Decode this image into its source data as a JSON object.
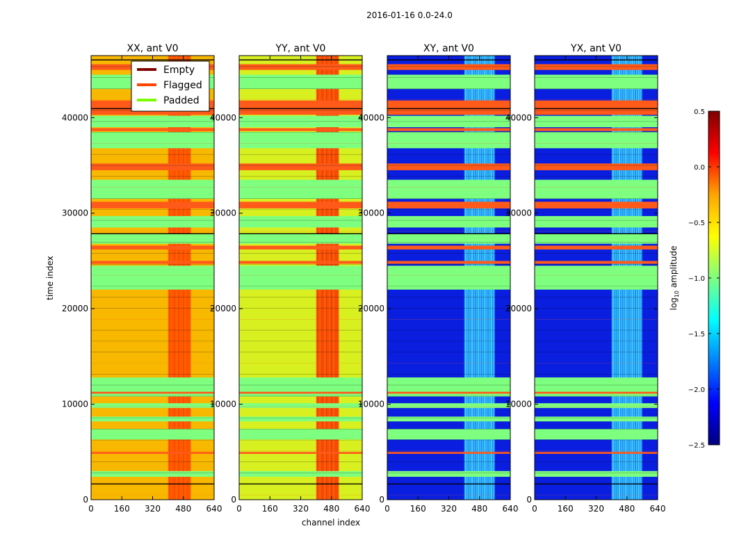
{
  "chart_data": {
    "type": "heatmap",
    "title": "2016-01-16 0.0-24.0",
    "xlabel": "channel index",
    "ylabel": "time index",
    "xlim": [
      0,
      640
    ],
    "ylim": [
      0,
      46500
    ],
    "xticks": [
      0,
      160,
      320,
      480,
      640
    ],
    "yticks": [
      0,
      10000,
      20000,
      30000,
      40000
    ],
    "panels": [
      {
        "title": "XX, ant V0",
        "base_color": "#f8b800",
        "hot_color": "#ff3a00",
        "hot_channels": [
          400,
          520
        ]
      },
      {
        "title": "YY, ant V0",
        "base_color": "#d8f020",
        "hot_color": "#ff2000",
        "hot_channels": [
          400,
          520
        ]
      },
      {
        "title": "XY, ant V0",
        "base_color": "#0a1ee0",
        "hot_color": "#40e8ff",
        "hot_channels": [
          400,
          560
        ]
      },
      {
        "title": "YX, ant V0",
        "base_color": "#0a1ee0",
        "hot_color": "#40e8ff",
        "hot_channels": [
          400,
          560
        ]
      }
    ],
    "padded_bands": [
      [
        2400,
        3000
      ],
      [
        6300,
        7400
      ],
      [
        8200,
        8700
      ],
      [
        9600,
        10100
      ],
      [
        10800,
        12800
      ],
      [
        22000,
        24500
      ],
      [
        26800,
        27800
      ],
      [
        28500,
        29700
      ],
      [
        31500,
        33500
      ],
      [
        36800,
        38500
      ],
      [
        39000,
        40200
      ],
      [
        43000,
        44500
      ]
    ],
    "flagged_bands": [
      [
        4800,
        5000
      ],
      [
        11100,
        11300
      ],
      [
        24700,
        25000
      ],
      [
        26200,
        26600
      ],
      [
        30500,
        31200
      ],
      [
        34500,
        35200
      ],
      [
        38600,
        38900
      ],
      [
        40300,
        41800
      ],
      [
        45000,
        45600
      ]
    ],
    "empty_bands": [
      [
        1600,
        1700
      ],
      [
        27800,
        27900
      ],
      [
        40900,
        41000
      ],
      [
        46000,
        46100
      ]
    ],
    "legend": {
      "location": "upper right",
      "entries": [
        {
          "label": "Empty",
          "color": "#800000"
        },
        {
          "label": "Flagged",
          "color": "#ff4500"
        },
        {
          "label": "Padded",
          "color": "#7cfc00"
        }
      ]
    },
    "colorbar": {
      "label": "log",
      "label_sub": "10",
      "label_suffix": " amplitude",
      "range": [
        -2.5,
        0.5
      ],
      "ticks": [
        "0.5",
        "0.0",
        "−0.5",
        "−1.0",
        "−1.5",
        "−2.0",
        "−2.5"
      ],
      "tick_values": [
        0.5,
        0.0,
        -0.5,
        -1.0,
        -1.5,
        -2.0,
        -2.5
      ],
      "colors": [
        "#800000",
        "#ff0000",
        "#ffa500",
        "#ffff00",
        "#7fff7f",
        "#00ffff",
        "#0080ff",
        "#0000ff",
        "#000080"
      ]
    }
  }
}
